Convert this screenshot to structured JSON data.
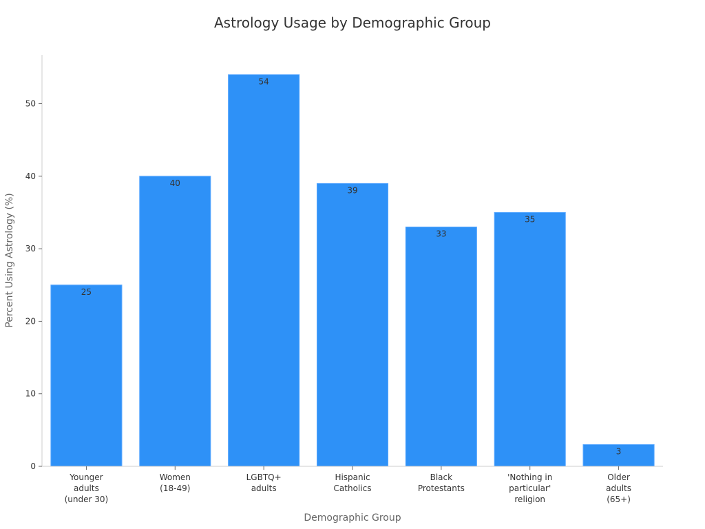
{
  "chart_data": {
    "type": "bar",
    "title": "Astrology Usage by Demographic Group",
    "xlabel": "Demographic Group",
    "ylabel": "Percent Using Astrology (%)",
    "categories": [
      [
        "Younger",
        "adults",
        "(under 30)"
      ],
      [
        "Women",
        "(18-49)"
      ],
      [
        "LGBTQ+",
        "adults"
      ],
      [
        "Hispanic",
        "Catholics"
      ],
      [
        "Black",
        "Protestants"
      ],
      [
        "'Nothing in",
        "particular'",
        "religion"
      ],
      [
        "Older",
        "adults",
        "(65+)"
      ]
    ],
    "values": [
      25,
      40,
      54,
      39,
      33,
      35,
      3
    ],
    "yticks": [
      0,
      10,
      20,
      30,
      40,
      50
    ],
    "ylim": [
      0,
      56.7
    ],
    "bar_color": "#2e91f7",
    "grid": false,
    "legend": "none"
  }
}
